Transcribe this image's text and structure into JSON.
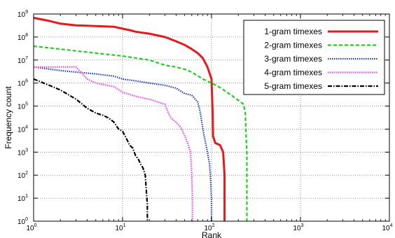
{
  "chart_data": {
    "type": "line",
    "title": "",
    "xlabel": "Rank",
    "ylabel": "Frequency count",
    "x_scale": "log",
    "y_scale": "log",
    "xlim": [
      1,
      10000
    ],
    "ylim": [
      1,
      1000000000
    ],
    "x_ticks": [
      {
        "base": "10",
        "exp": "0",
        "value": 1
      },
      {
        "base": "10",
        "exp": "1",
        "value": 10
      },
      {
        "base": "10",
        "exp": "2",
        "value": 100
      },
      {
        "base": "10",
        "exp": "3",
        "value": 1000
      },
      {
        "base": "10",
        "exp": "4",
        "value": 10000
      }
    ],
    "y_ticks": [
      {
        "base": "10",
        "exp": "0",
        "value": 1
      },
      {
        "base": "10",
        "exp": "1",
        "value": 10
      },
      {
        "base": "10",
        "exp": "2",
        "value": 100
      },
      {
        "base": "10",
        "exp": "3",
        "value": 1000
      },
      {
        "base": "10",
        "exp": "4",
        "value": 10000
      },
      {
        "base": "10",
        "exp": "5",
        "value": 100000
      },
      {
        "base": "10",
        "exp": "6",
        "value": 1000000
      },
      {
        "base": "10",
        "exp": "7",
        "value": 10000000
      },
      {
        "base": "10",
        "exp": "8",
        "value": 100000000
      },
      {
        "base": "10",
        "exp": "9",
        "value": 1000000000
      }
    ],
    "grid": true,
    "legend_position": "top-right",
    "series": [
      {
        "name": "1-gram timexes",
        "color": "#e41a1c",
        "dash": "solid",
        "points": [
          [
            1,
            680000000
          ],
          [
            1.5,
            500000000
          ],
          [
            2,
            380000000
          ],
          [
            3,
            320000000
          ],
          [
            5,
            300000000
          ],
          [
            8,
            280000000
          ],
          [
            10,
            230000000
          ],
          [
            12,
            200000000
          ],
          [
            14,
            170000000
          ],
          [
            20,
            140000000
          ],
          [
            30,
            100000000
          ],
          [
            40,
            65000000
          ],
          [
            50,
            45000000
          ],
          [
            60,
            30000000
          ],
          [
            70,
            20000000
          ],
          [
            80,
            12000000
          ],
          [
            90,
            5000000
          ],
          [
            100,
            1500000
          ],
          [
            103,
            50000
          ],
          [
            104,
            5000
          ],
          [
            110,
            2500
          ],
          [
            125,
            2000
          ],
          [
            135,
            1000
          ],
          [
            140,
            100
          ],
          [
            140,
            1
          ]
        ]
      },
      {
        "name": "2-gram timexes",
        "color": "#22cc22",
        "dash": "dashed",
        "points": [
          [
            1,
            40000000
          ],
          [
            2,
            30000000
          ],
          [
            3,
            25000000
          ],
          [
            5,
            20000000
          ],
          [
            10,
            15000000
          ],
          [
            20,
            10000000
          ],
          [
            30,
            6000000
          ],
          [
            40,
            5000000
          ],
          [
            50,
            4000000
          ],
          [
            60,
            3000000
          ],
          [
            80,
            1500000
          ],
          [
            100,
            1000000
          ],
          [
            120,
            700000
          ],
          [
            150,
            400000
          ],
          [
            200,
            180000
          ],
          [
            230,
            120000
          ],
          [
            240,
            50000
          ],
          [
            245,
            5000
          ],
          [
            250,
            1000
          ],
          [
            250,
            1
          ]
        ]
      },
      {
        "name": "3-gram timexes",
        "color": "#1a3ccc",
        "dash": "dotted",
        "points": [
          [
            1,
            5000000
          ],
          [
            2,
            3500000
          ],
          [
            3,
            3000000
          ],
          [
            5,
            2500000
          ],
          [
            8,
            2000000
          ],
          [
            10,
            1500000
          ],
          [
            15,
            1200000
          ],
          [
            20,
            1000000
          ],
          [
            30,
            800000
          ],
          [
            40,
            600000
          ],
          [
            50,
            350000
          ],
          [
            60,
            300000
          ],
          [
            70,
            150000
          ],
          [
            75,
            50000
          ],
          [
            80,
            10000
          ],
          [
            85,
            3000
          ],
          [
            90,
            1000
          ],
          [
            95,
            300
          ],
          [
            97,
            100
          ],
          [
            100,
            10
          ],
          [
            100,
            1
          ]
        ]
      },
      {
        "name": "4-gram timexes",
        "color": "#ee44ee",
        "dash": "dotted",
        "points": [
          [
            1,
            5000000
          ],
          [
            3,
            5000000
          ],
          [
            4,
            1500000
          ],
          [
            5,
            1000000
          ],
          [
            8,
            700000
          ],
          [
            10,
            400000
          ],
          [
            15,
            250000
          ],
          [
            20,
            200000
          ],
          [
            25,
            150000
          ],
          [
            30,
            120000
          ],
          [
            32,
            60000
          ],
          [
            35,
            30000
          ],
          [
            40,
            20000
          ],
          [
            45,
            12000
          ],
          [
            50,
            5000
          ],
          [
            55,
            2000
          ],
          [
            58,
            1000
          ],
          [
            60,
            100
          ],
          [
            61,
            10
          ],
          [
            61,
            1
          ]
        ]
      },
      {
        "name": "5-gram timexes",
        "color": "#000000",
        "dash": "dashdot",
        "points": [
          [
            1,
            1500000
          ],
          [
            1.5,
            800000
          ],
          [
            2,
            500000
          ],
          [
            3,
            200000
          ],
          [
            4,
            80000
          ],
          [
            5,
            50000
          ],
          [
            6,
            40000
          ],
          [
            7,
            30000
          ],
          [
            8,
            20000
          ],
          [
            9,
            10000
          ],
          [
            10,
            8000
          ],
          [
            11,
            4000
          ],
          [
            12,
            2000
          ],
          [
            13,
            1500
          ],
          [
            14,
            700
          ],
          [
            15,
            500
          ],
          [
            16,
            300
          ],
          [
            17,
            200
          ],
          [
            18,
            100
          ],
          [
            19,
            5
          ],
          [
            19,
            1
          ]
        ]
      }
    ]
  }
}
